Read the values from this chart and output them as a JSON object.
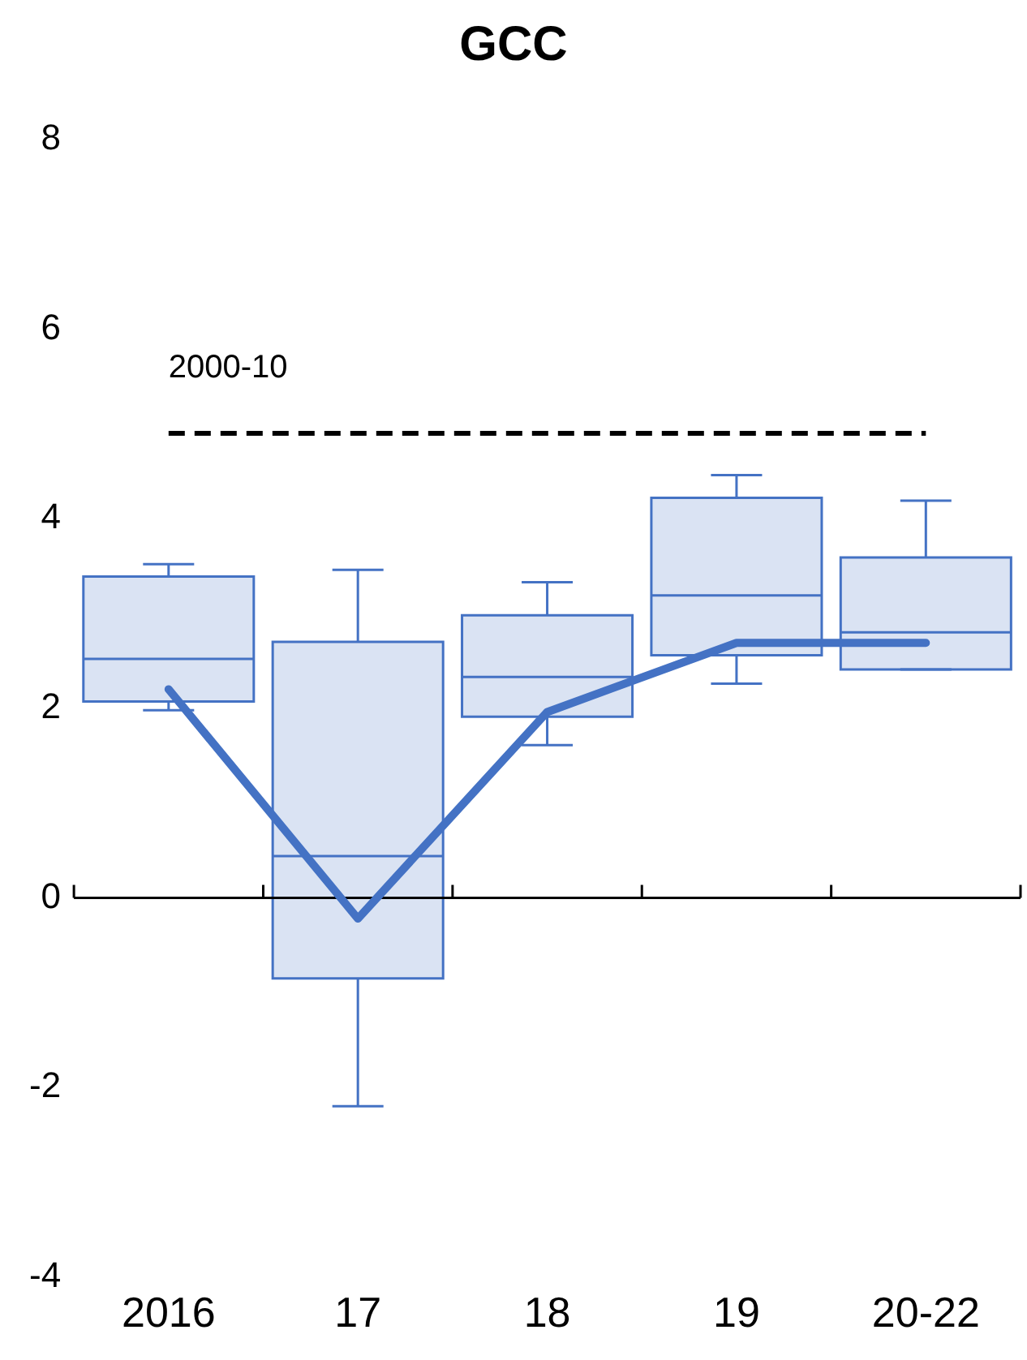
{
  "chart_data": {
    "type": "box",
    "title": "GCC",
    "categories": [
      "2016",
      "17",
      "18",
      "19",
      "20-22"
    ],
    "color": "#4472c4",
    "boxes": [
      {
        "low": 1.98,
        "q1": 2.07,
        "median": 2.52,
        "q3": 3.39,
        "high": 3.52
      },
      {
        "low": -2.2,
        "q1": -0.85,
        "median": 0.44,
        "q3": 2.7,
        "high": 3.46
      },
      {
        "low": 1.61,
        "q1": 1.91,
        "median": 2.33,
        "q3": 2.98,
        "high": 3.33
      },
      {
        "low": 2.26,
        "q1": 2.56,
        "median": 3.19,
        "q3": 4.22,
        "high": 4.46
      },
      {
        "low": 2.41,
        "q1": 2.41,
        "median": 2.8,
        "q3": 3.59,
        "high": 4.19
      }
    ],
    "series": [
      {
        "type": "line",
        "color": "#4472c4",
        "values": [
          2.2,
          -0.22,
          1.96,
          2.69,
          2.69
        ]
      }
    ],
    "ref_lines": [
      {
        "axis": "y",
        "value": 4.9,
        "color": "#000000",
        "line_style": "dashed"
      },
      {
        "axis": "y",
        "value": 0,
        "color": "#000000",
        "line_style": "solid"
      }
    ],
    "annotations": [
      "2000-10"
    ],
    "ylim": [
      -4,
      8
    ],
    "yticks": [
      -4,
      -2,
      0,
      2,
      4,
      6,
      8
    ],
    "grid": false,
    "legend": false,
    "marker": "none"
  }
}
